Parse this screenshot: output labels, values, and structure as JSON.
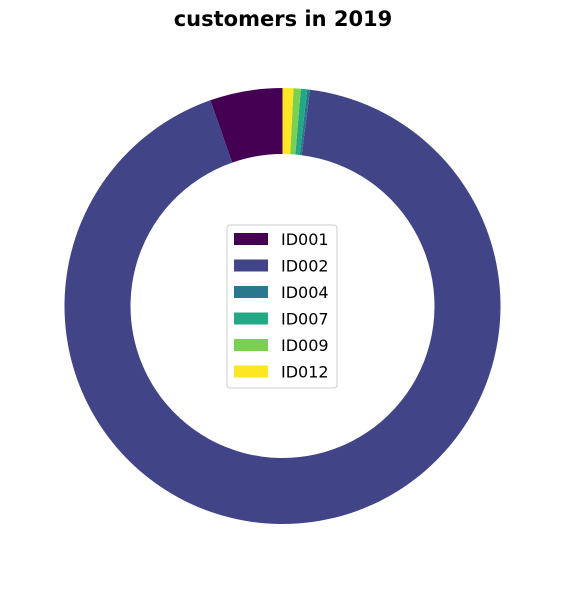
{
  "chart_data": {
    "type": "pie",
    "title": "customers in 2019",
    "donut": true,
    "legend_position": "center",
    "categories": [
      "ID001",
      "ID002",
      "ID004",
      "ID007",
      "ID009",
      "ID012"
    ],
    "values": [
      8,
      138,
      0.3,
      0.7,
      0.8,
      1.2
    ],
    "colors": [
      "#440154",
      "#414487",
      "#2a788e",
      "#22a884",
      "#7ad151",
      "#fde725"
    ],
    "start": "top",
    "direction": "counterclockwise"
  }
}
